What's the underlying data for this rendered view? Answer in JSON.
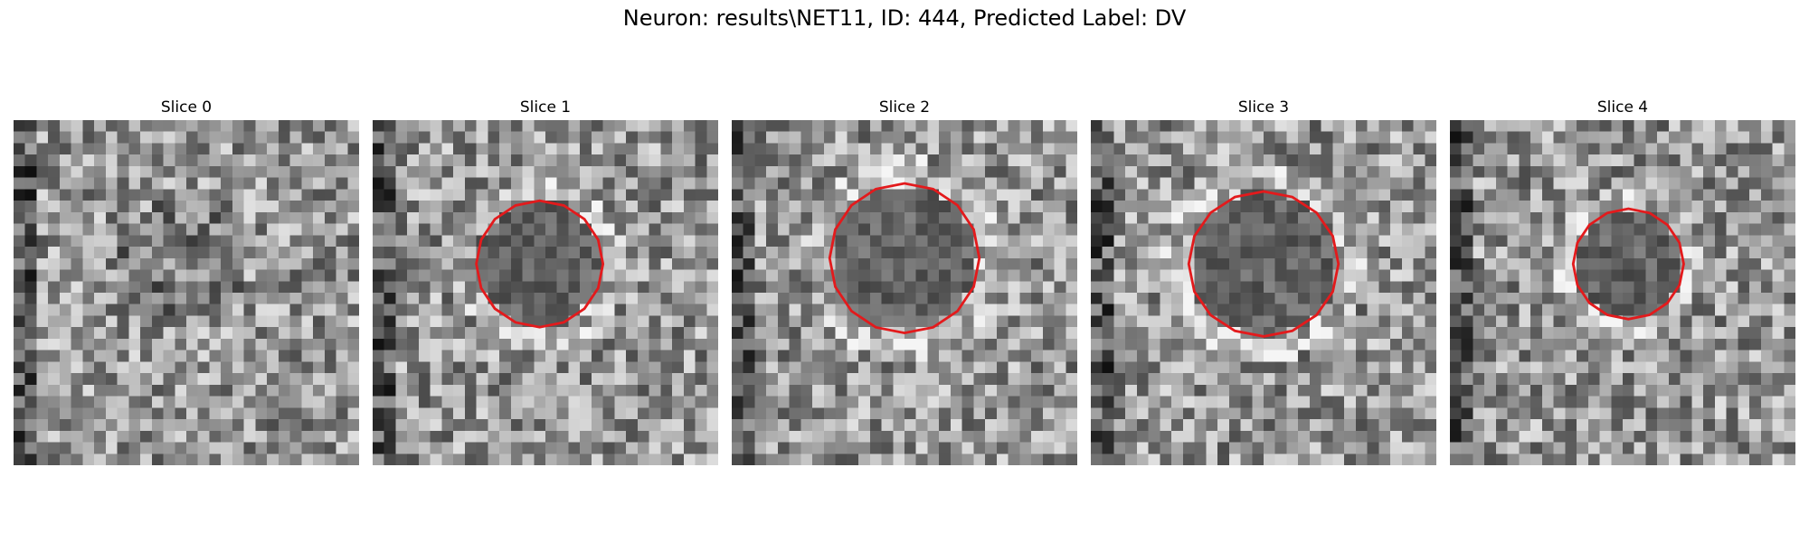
{
  "figure": {
    "title": "Neuron: results\\NET11, ID: 444, Predicted Label: DV",
    "contour_color": "#e31a1c",
    "colormap": "gray"
  },
  "panels": [
    {
      "title": "Slice 0",
      "has_contour": false,
      "seed": 11
    },
    {
      "title": "Slice 1",
      "has_contour": true,
      "seed": 23
    },
    {
      "title": "Slice 2",
      "has_contour": true,
      "seed": 37
    },
    {
      "title": "Slice 3",
      "has_contour": true,
      "seed": 41
    },
    {
      "title": "Slice 4",
      "has_contour": true,
      "seed": 59
    }
  ]
}
